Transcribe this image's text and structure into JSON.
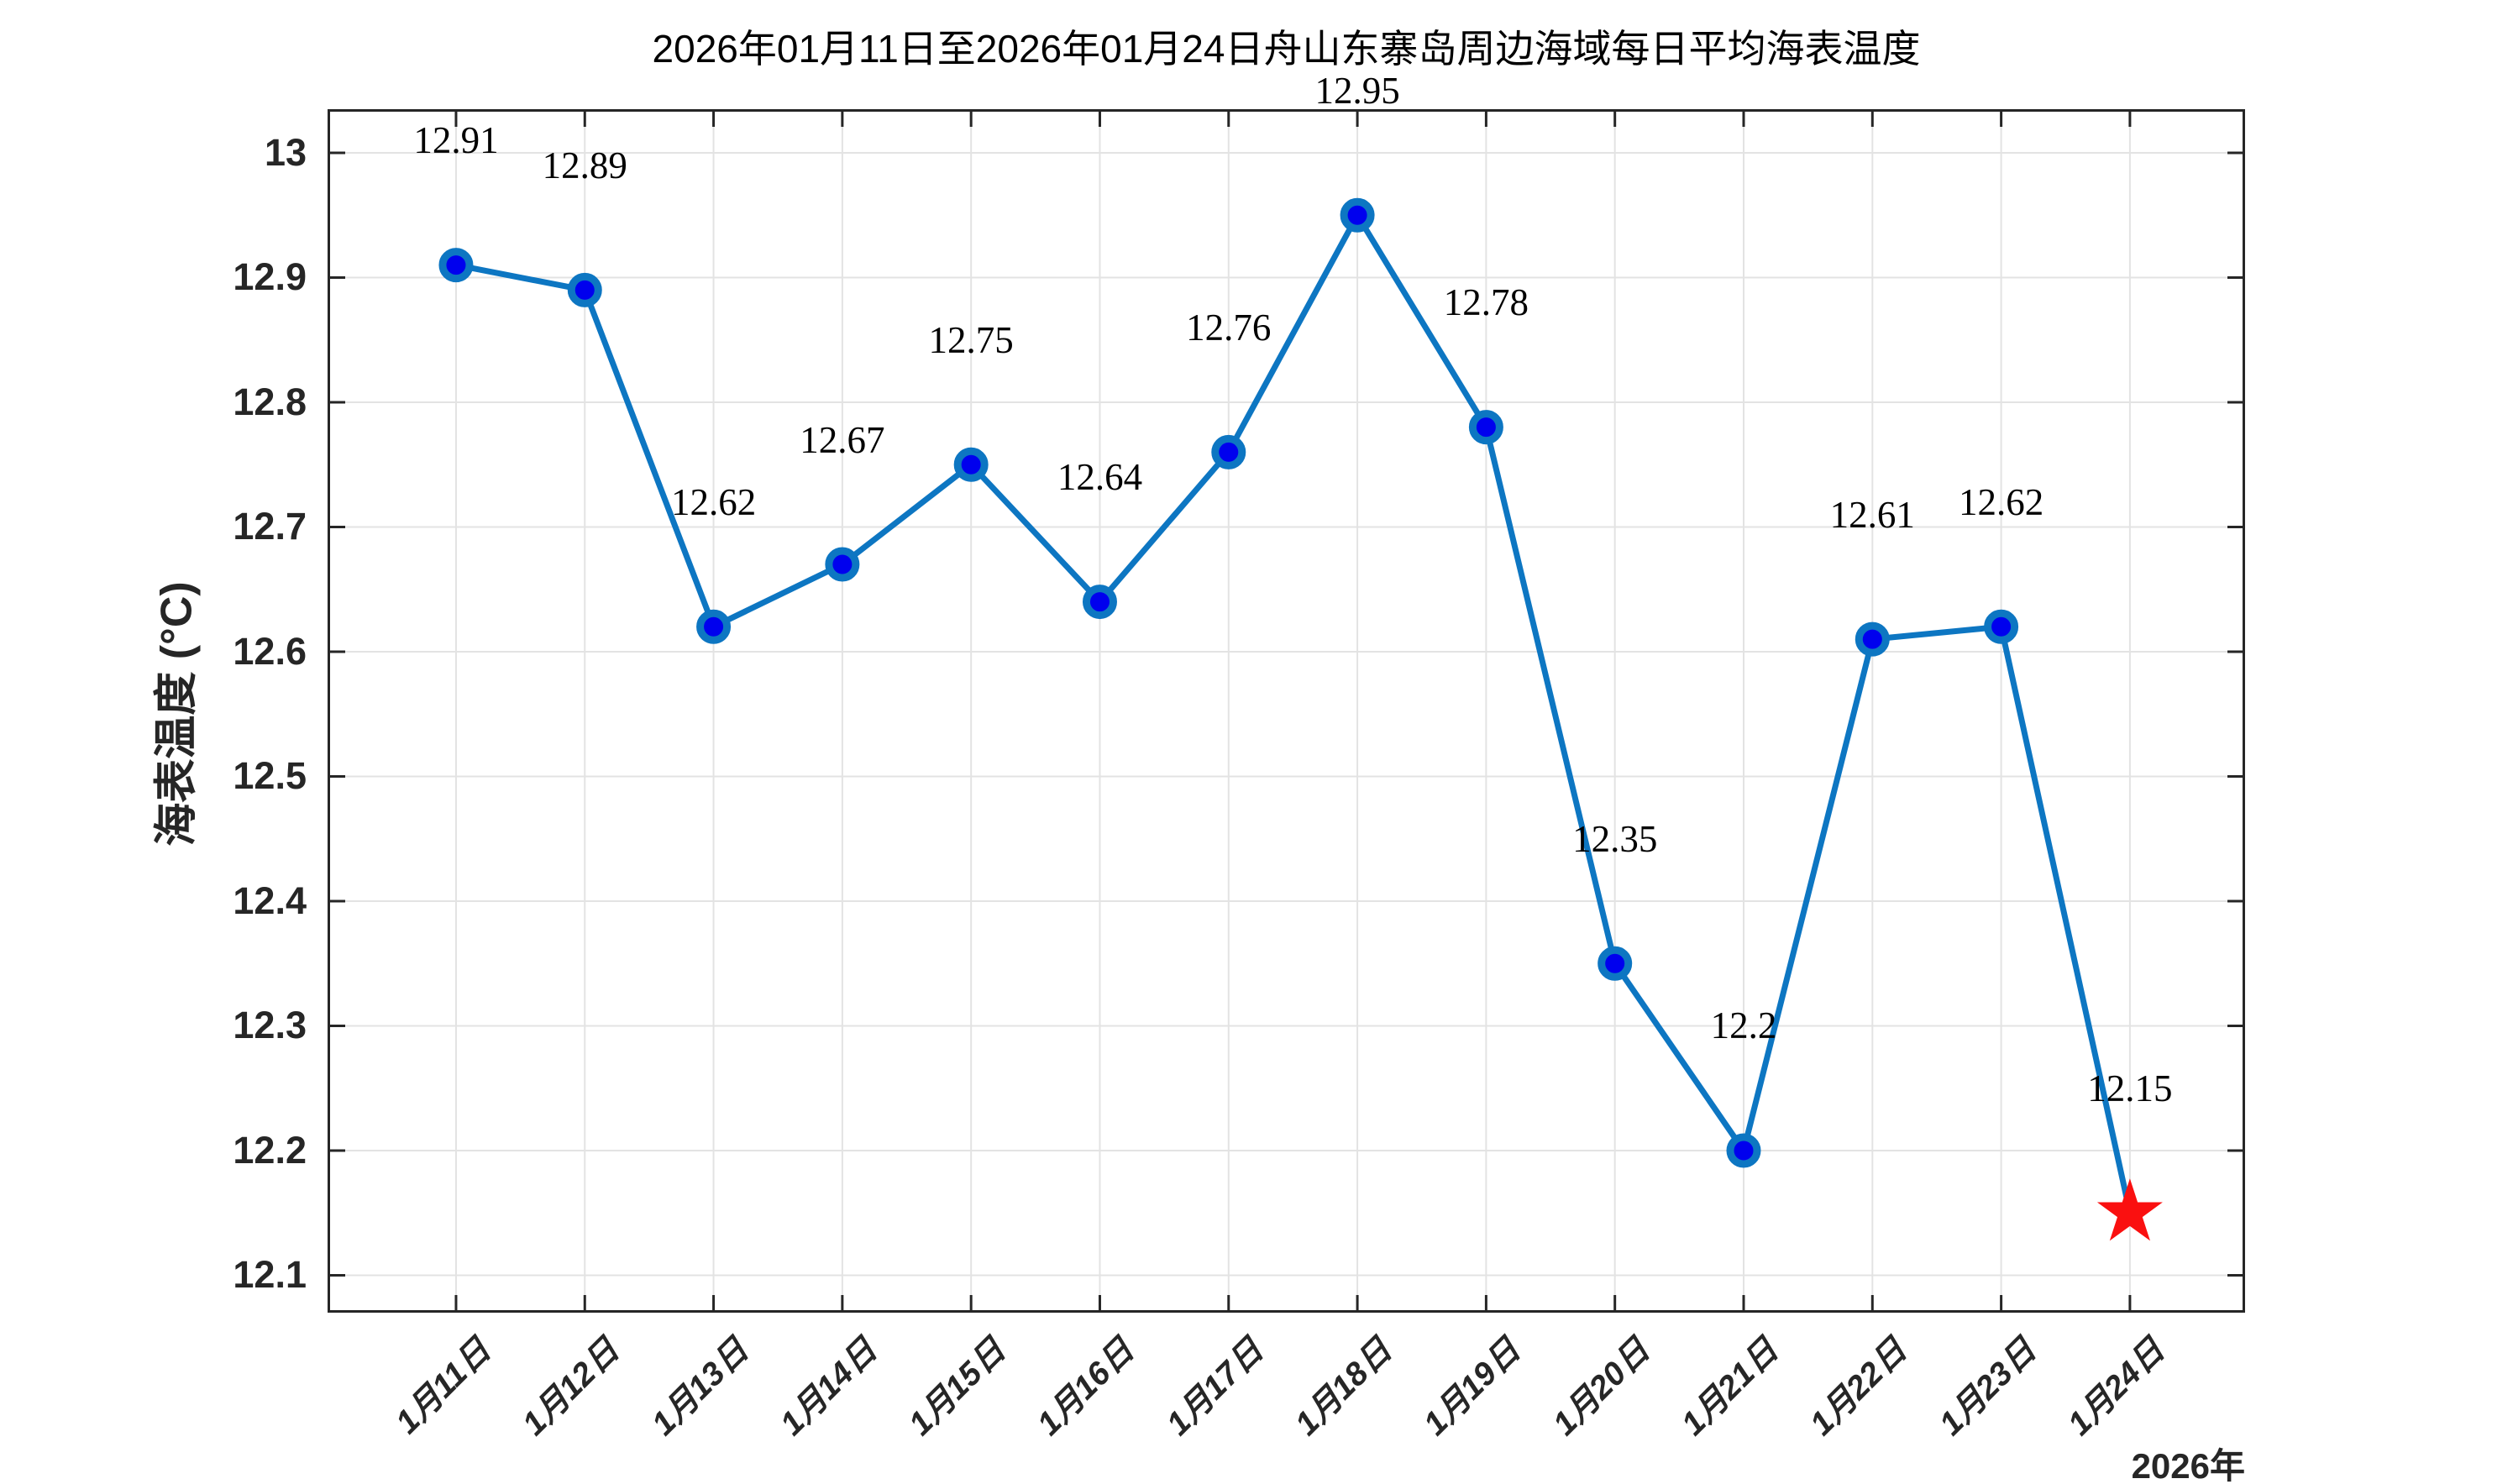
{
  "chart_data": {
    "type": "line",
    "title": "2026年01月11日至2026年01月24日舟山东寨岛周边海域每日平均海表温度",
    "ylabel": "海表温度 (°C)",
    "x_axis_year_label": "2026年",
    "categories": [
      "1月11日",
      "1月12日",
      "1月13日",
      "1月14日",
      "1月15日",
      "1月16日",
      "1月17日",
      "1月18日",
      "1月19日",
      "1月20日",
      "1月21日",
      "1月22日",
      "1月23日",
      "1月24日"
    ],
    "values": [
      12.91,
      12.89,
      12.62,
      12.67,
      12.75,
      12.64,
      12.76,
      12.95,
      12.78,
      12.35,
      12.2,
      12.61,
      12.62,
      12.15
    ],
    "point_labels": [
      "12.91",
      "12.89",
      "12.62",
      "12.67",
      "12.75",
      "12.64",
      "12.76",
      "12.95",
      "12.78",
      "12.35",
      "12.2",
      "12.61",
      "12.62",
      "12.15"
    ],
    "y_ticks": [
      "13",
      "12.9",
      "12.8",
      "12.7",
      "12.6",
      "12.5",
      "12.4",
      "12.3",
      "12.2",
      "12.1"
    ],
    "ylim": [
      12.07,
      13.035
    ],
    "grid": true,
    "legend": null,
    "series_name": "每日平均海表温度",
    "last_point_marker": "star",
    "marker": "circle",
    "colors": {
      "line": "#0D76C2",
      "marker_fill": "#0000EE",
      "marker_edge": "#0D76C2",
      "star": "#FA1010",
      "grid": "#E3E3E3",
      "axis": "#262626",
      "text": "#262626",
      "label_text": "#000000"
    }
  }
}
